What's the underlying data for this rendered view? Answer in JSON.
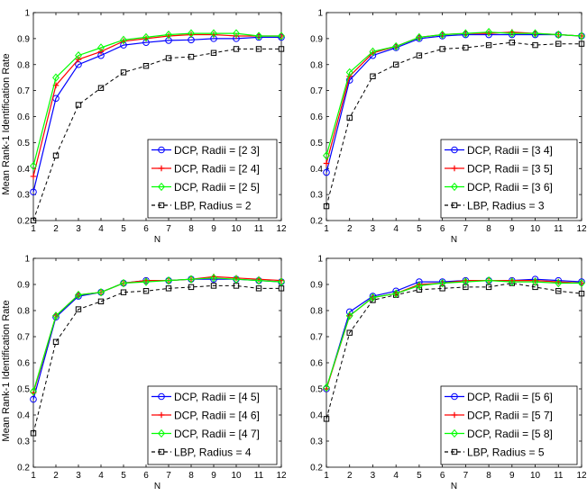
{
  "ylabel": "Mean Rank-1 Identification Rate",
  "chart_data": [
    {
      "type": "line",
      "xlabel": "N",
      "ylabel": "Mean Rank-1 Identification Rate",
      "xlim": [
        1,
        12
      ],
      "ylim": [
        0.2,
        1
      ],
      "xticks": [
        "1",
        "2",
        "3",
        "4",
        "5",
        "6",
        "7",
        "8",
        "9",
        "10",
        "11",
        "12"
      ],
      "yticks": [
        "0.2",
        "0.3",
        "0.4",
        "0.5",
        "0.6",
        "0.7",
        "0.8",
        "0.9",
        "1"
      ],
      "grid": false,
      "legend_position": "bottom-right",
      "x": [
        1,
        2,
        3,
        4,
        5,
        6,
        7,
        8,
        9,
        10,
        11,
        12
      ],
      "series": [
        {
          "name": "DCP, Radii = [2 3]",
          "color": "#0000ff",
          "marker": "circle",
          "dash": "solid",
          "values": [
            0.31,
            0.67,
            0.8,
            0.835,
            0.875,
            0.885,
            0.893,
            0.895,
            0.9,
            0.9,
            0.905,
            0.905
          ]
        },
        {
          "name": "DCP, Radii = [2 4]",
          "color": "#ff0000",
          "marker": "plus",
          "dash": "solid",
          "values": [
            0.37,
            0.72,
            0.82,
            0.85,
            0.89,
            0.9,
            0.91,
            0.915,
            0.915,
            0.91,
            0.91,
            0.91
          ]
        },
        {
          "name": "DCP, Radii = [2 5]",
          "color": "#00ff00",
          "marker": "diamond",
          "dash": "solid",
          "values": [
            0.41,
            0.75,
            0.835,
            0.865,
            0.895,
            0.905,
            0.915,
            0.92,
            0.92,
            0.92,
            0.91,
            0.91
          ]
        },
        {
          "name": "LBP, Radius = 2",
          "color": "#000000",
          "marker": "square",
          "dash": "dashed",
          "values": [
            0.2,
            0.45,
            0.645,
            0.71,
            0.77,
            0.795,
            0.825,
            0.83,
            0.845,
            0.86,
            0.86,
            0.86
          ]
        }
      ]
    },
    {
      "type": "line",
      "xlabel": "N",
      "ylabel": "",
      "xlim": [
        1,
        12
      ],
      "ylim": [
        0.2,
        1
      ],
      "xticks": [
        "1",
        "2",
        "3",
        "4",
        "5",
        "6",
        "7",
        "8",
        "9",
        "10",
        "11",
        "12"
      ],
      "yticks": [
        "0.2",
        "0.3",
        "0.4",
        "0.5",
        "0.6",
        "0.7",
        "0.8",
        "0.9",
        "1"
      ],
      "grid": false,
      "legend_position": "bottom-right",
      "x": [
        1,
        2,
        3,
        4,
        5,
        6,
        7,
        8,
        9,
        10,
        11,
        12
      ],
      "series": [
        {
          "name": "DCP, Radii = [3 4]",
          "color": "#0000ff",
          "marker": "circle",
          "dash": "solid",
          "values": [
            0.385,
            0.74,
            0.835,
            0.865,
            0.9,
            0.91,
            0.915,
            0.915,
            0.915,
            0.915,
            0.915,
            0.91
          ]
        },
        {
          "name": "DCP, Radii = [3 5]",
          "color": "#ff0000",
          "marker": "plus",
          "dash": "solid",
          "values": [
            0.42,
            0.755,
            0.845,
            0.87,
            0.905,
            0.915,
            0.92,
            0.92,
            0.925,
            0.92,
            0.915,
            0.91
          ]
        },
        {
          "name": "DCP, Radii = [3 6]",
          "color": "#00ff00",
          "marker": "diamond",
          "dash": "solid",
          "values": [
            0.45,
            0.77,
            0.85,
            0.87,
            0.905,
            0.915,
            0.92,
            0.925,
            0.92,
            0.92,
            0.915,
            0.91
          ]
        },
        {
          "name": "LBP, Radius = 3",
          "color": "#000000",
          "marker": "square",
          "dash": "dashed",
          "values": [
            0.255,
            0.595,
            0.755,
            0.8,
            0.835,
            0.86,
            0.865,
            0.875,
            0.885,
            0.875,
            0.88,
            0.88
          ]
        }
      ]
    },
    {
      "type": "line",
      "xlabel": "N",
      "ylabel": "Mean Rank-1 Identification Rate",
      "xlim": [
        1,
        12
      ],
      "ylim": [
        0.2,
        1
      ],
      "xticks": [
        "1",
        "2",
        "3",
        "4",
        "5",
        "6",
        "7",
        "8",
        "9",
        "10",
        "11",
        "12"
      ],
      "yticks": [
        "0.2",
        "0.3",
        "0.4",
        "0.5",
        "0.6",
        "0.7",
        "0.8",
        "0.9",
        "1"
      ],
      "grid": false,
      "legend_position": "bottom-right",
      "x": [
        1,
        2,
        3,
        4,
        5,
        6,
        7,
        8,
        9,
        10,
        11,
        12
      ],
      "series": [
        {
          "name": "DCP, Radii = [4 5]",
          "color": "#0000ff",
          "marker": "circle",
          "dash": "solid",
          "values": [
            0.46,
            0.775,
            0.855,
            0.87,
            0.905,
            0.915,
            0.915,
            0.92,
            0.92,
            0.92,
            0.915,
            0.91
          ]
        },
        {
          "name": "DCP, Radii = [4 6]",
          "color": "#ff0000",
          "marker": "plus",
          "dash": "solid",
          "values": [
            0.485,
            0.78,
            0.86,
            0.87,
            0.905,
            0.915,
            0.915,
            0.92,
            0.93,
            0.925,
            0.92,
            0.915
          ]
        },
        {
          "name": "DCP, Radii = [4 7]",
          "color": "#00ff00",
          "marker": "diamond",
          "dash": "solid",
          "values": [
            0.49,
            0.78,
            0.86,
            0.87,
            0.905,
            0.91,
            0.915,
            0.92,
            0.925,
            0.92,
            0.915,
            0.91
          ]
        },
        {
          "name": "LBP, Radius = 4",
          "color": "#000000",
          "marker": "square",
          "dash": "dashed",
          "values": [
            0.33,
            0.68,
            0.805,
            0.835,
            0.87,
            0.875,
            0.885,
            0.89,
            0.895,
            0.895,
            0.885,
            0.885
          ]
        }
      ]
    },
    {
      "type": "line",
      "xlabel": "N",
      "ylabel": "",
      "xlim": [
        1,
        12
      ],
      "ylim": [
        0.2,
        1
      ],
      "xticks": [
        "1",
        "2",
        "3",
        "4",
        "5",
        "6",
        "7",
        "8",
        "9",
        "10",
        "11",
        "12"
      ],
      "yticks": [
        "0.2",
        "0.3",
        "0.4",
        "0.5",
        "0.6",
        "0.7",
        "0.8",
        "0.9",
        "1"
      ],
      "grid": false,
      "legend_position": "bottom-right",
      "x": [
        1,
        2,
        3,
        4,
        5,
        6,
        7,
        8,
        9,
        10,
        11,
        12
      ],
      "series": [
        {
          "name": "DCP, Radii = [5 6]",
          "color": "#0000ff",
          "marker": "circle",
          "dash": "solid",
          "values": [
            0.5,
            0.795,
            0.855,
            0.875,
            0.91,
            0.91,
            0.915,
            0.915,
            0.915,
            0.92,
            0.915,
            0.91
          ]
        },
        {
          "name": "DCP, Radii = [5 7]",
          "color": "#ff0000",
          "marker": "plus",
          "dash": "solid",
          "values": [
            0.5,
            0.78,
            0.85,
            0.865,
            0.9,
            0.905,
            0.915,
            0.915,
            0.915,
            0.915,
            0.91,
            0.905
          ]
        },
        {
          "name": "DCP, Radii = [5 8]",
          "color": "#00ff00",
          "marker": "diamond",
          "dash": "solid",
          "values": [
            0.505,
            0.78,
            0.85,
            0.865,
            0.895,
            0.905,
            0.91,
            0.915,
            0.91,
            0.91,
            0.905,
            0.905
          ]
        },
        {
          "name": "LBP, Radius = 5",
          "color": "#000000",
          "marker": "square",
          "dash": "dashed",
          "values": [
            0.385,
            0.715,
            0.84,
            0.86,
            0.88,
            0.885,
            0.89,
            0.89,
            0.905,
            0.89,
            0.875,
            0.865
          ]
        }
      ]
    }
  ]
}
